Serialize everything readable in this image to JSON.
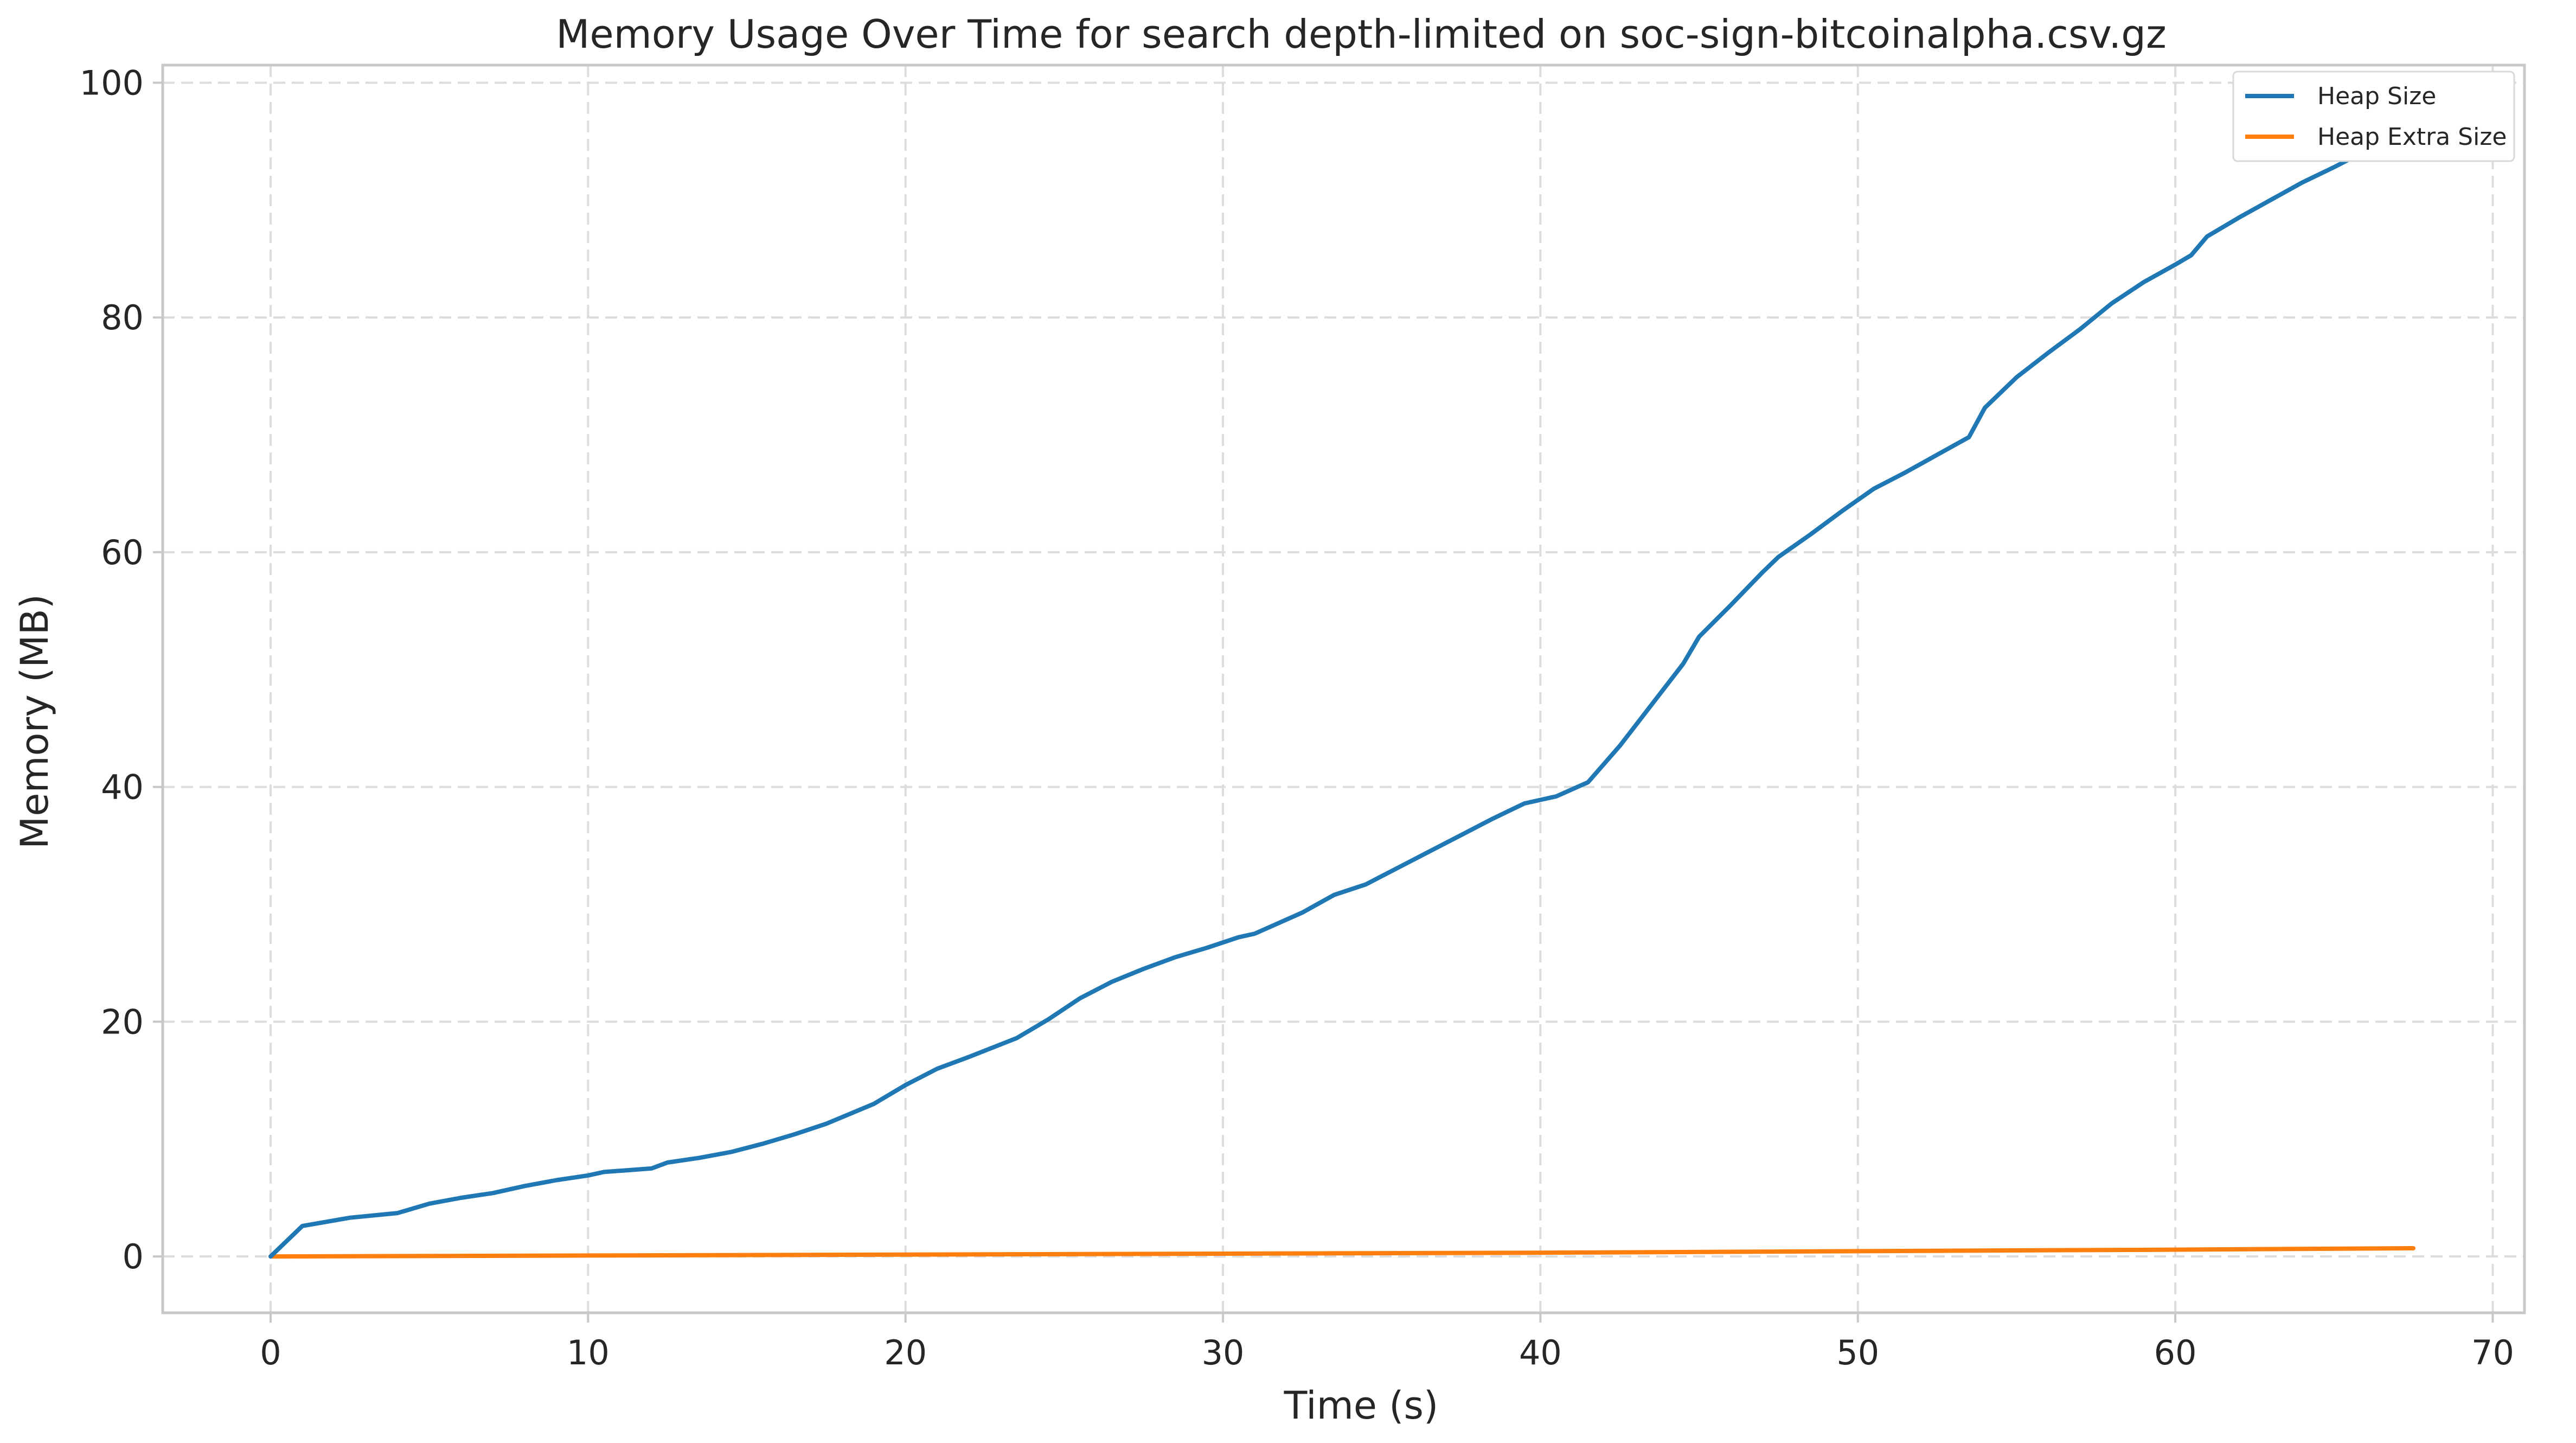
{
  "chart_data": {
    "type": "line",
    "title": "Memory Usage Over Time for search depth-limited on soc-sign-bitcoinalpha.csv.gz",
    "xlabel": "Time (s)",
    "ylabel": "Memory (MB)",
    "xlim": [
      -3.4,
      71
    ],
    "ylim": [
      -4.8,
      101.5
    ],
    "xticks": [
      0,
      10,
      20,
      30,
      40,
      50,
      60,
      70
    ],
    "yticks": [
      0,
      20,
      40,
      60,
      80,
      100
    ],
    "grid": true,
    "legend_position": "top-right",
    "series": [
      {
        "name": "Heap Size",
        "color": "#1f77b4",
        "x": [
          0,
          1,
          2.5,
          4,
          5,
          6,
          7,
          8,
          9,
          10,
          10.5,
          12,
          12.5,
          13.5,
          14.5,
          15.5,
          16.5,
          17.5,
          19,
          20,
          21,
          22,
          23.5,
          24.5,
          25.5,
          26.5,
          27.5,
          28.5,
          29.5,
          30.5,
          31,
          32,
          32.5,
          33.5,
          34.5,
          35.5,
          36.5,
          37.5,
          38.5,
          39.5,
          40.5,
          41.5,
          42.5,
          43.5,
          44.5,
          45,
          46,
          47,
          47.5,
          48.5,
          49.5,
          50.5,
          51.5,
          52.5,
          53.5,
          54,
          55,
          56,
          57,
          58,
          59,
          60,
          60.5,
          61,
          62,
          63,
          64,
          65,
          66,
          67,
          67.5
        ],
        "values": [
          0,
          2.6,
          3.3,
          3.7,
          4.5,
          5.0,
          5.4,
          6.0,
          6.5,
          6.9,
          7.2,
          7.5,
          8.0,
          8.4,
          8.9,
          9.6,
          10.4,
          11.3,
          13.0,
          14.6,
          16.0,
          17.0,
          18.6,
          20.2,
          22.0,
          23.4,
          24.5,
          25.5,
          26.3,
          27.2,
          27.5,
          28.7,
          29.3,
          30.8,
          31.7,
          33.1,
          34.5,
          35.9,
          37.3,
          38.6,
          39.2,
          40.4,
          43.5,
          47.0,
          50.5,
          52.8,
          55.5,
          58.3,
          59.6,
          61.5,
          63.5,
          65.4,
          66.8,
          68.3,
          69.8,
          72.3,
          74.9,
          77.0,
          79.0,
          81.2,
          83.0,
          84.5,
          85.3,
          86.9,
          88.5,
          90.0,
          91.5,
          92.8,
          94.2,
          96.0,
          97.2
        ]
      },
      {
        "name": "Heap Extra Size",
        "color": "#ff7f0e",
        "x": [
          0,
          10,
          20,
          30,
          40,
          50,
          60,
          67.5
        ],
        "values": [
          0,
          0.08,
          0.16,
          0.24,
          0.32,
          0.45,
          0.58,
          0.7
        ]
      }
    ]
  }
}
